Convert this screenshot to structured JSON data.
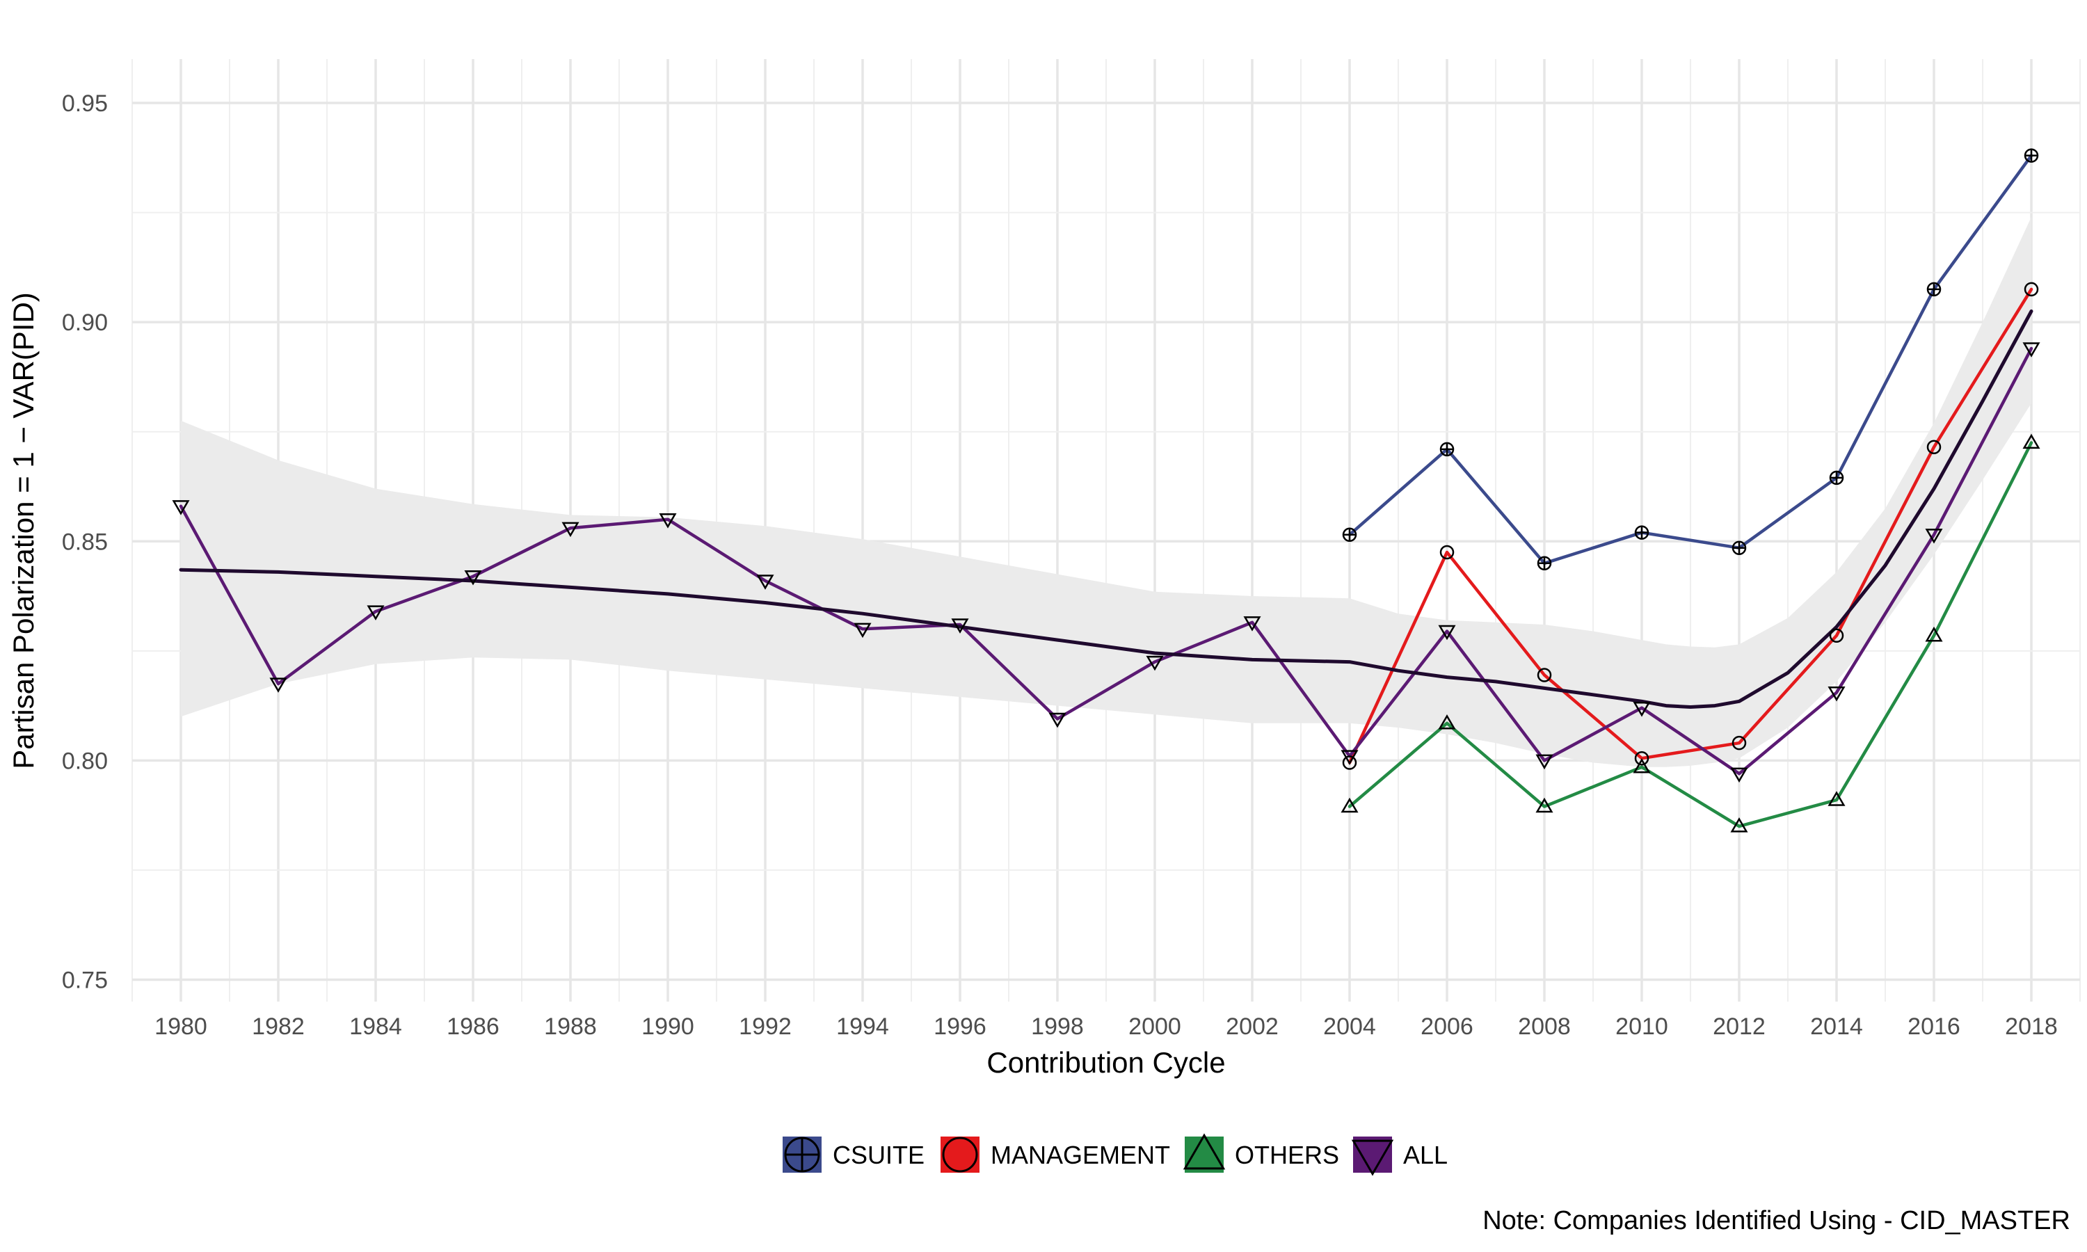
{
  "chart_data": {
    "type": "line",
    "xlabel": "Contribution Cycle",
    "ylabel": "Partisan Polarization = 1 − VAR(PID)",
    "caption": "Note: Companies Identified Using - CID_MASTER",
    "xlim": [
      1979,
      2019
    ],
    "ylim": [
      0.745,
      0.96
    ],
    "x_ticks": [
      1980,
      1982,
      1984,
      1986,
      1988,
      1990,
      1992,
      1994,
      1996,
      1998,
      2000,
      2002,
      2004,
      2006,
      2008,
      2010,
      2012,
      2014,
      2016,
      2018
    ],
    "x_tick_labels": [
      "1980",
      "1982",
      "1984",
      "1986",
      "1988",
      "1990",
      "1992",
      "1994",
      "1996",
      "1998",
      "2000",
      "2002",
      "2004",
      "2006",
      "2008",
      "2010",
      "2012",
      "2014",
      "2016",
      "2018"
    ],
    "y_ticks": [
      0.75,
      0.8,
      0.85,
      0.9,
      0.95
    ],
    "y_tick_labels": [
      "0.75",
      "0.80",
      "0.85",
      "0.90",
      "0.95"
    ],
    "grid": true,
    "legend_position": "bottom",
    "series": [
      {
        "name": "CSUITE",
        "color": "#3b4a8c",
        "marker": "circle-plus",
        "x": [
          2004,
          2006,
          2008,
          2010,
          2012,
          2014,
          2016,
          2018
        ],
        "values": [
          0.8515,
          0.871,
          0.845,
          0.852,
          0.8485,
          0.8645,
          0.9075,
          0.938
        ]
      },
      {
        "name": "MANAGEMENT",
        "color": "#e41a1c",
        "marker": "circle",
        "x": [
          2004,
          2006,
          2008,
          2010,
          2012,
          2014,
          2016,
          2018
        ],
        "values": [
          0.7995,
          0.8475,
          0.8195,
          0.8005,
          0.804,
          0.8285,
          0.8715,
          0.9075
        ]
      },
      {
        "name": "OTHERS",
        "color": "#238b45",
        "marker": "triangle-up",
        "x": [
          2004,
          2006,
          2008,
          2010,
          2012,
          2014,
          2016,
          2018
        ],
        "values": [
          0.7895,
          0.8085,
          0.7895,
          0.7985,
          0.785,
          0.791,
          0.8285,
          0.8725
        ]
      },
      {
        "name": "ALL",
        "color": "#5b1a73",
        "marker": "triangle-down",
        "x": [
          1980,
          1982,
          1984,
          1986,
          1988,
          1990,
          1992,
          1994,
          1996,
          1998,
          2000,
          2002,
          2004,
          2006,
          2008,
          2010,
          2012,
          2014,
          2016,
          2018
        ],
        "values": [
          0.858,
          0.8175,
          0.834,
          0.842,
          0.853,
          0.855,
          0.841,
          0.83,
          0.831,
          0.8095,
          0.8225,
          0.8315,
          0.801,
          0.8295,
          0.8,
          0.812,
          0.797,
          0.8155,
          0.8515,
          0.894
        ]
      }
    ],
    "smooth": {
      "color": "#1f0a2e",
      "band_color": "#ebebeb",
      "x": [
        1980,
        1982,
        1984,
        1986,
        1988,
        1990,
        1992,
        1994,
        1996,
        1998,
        2000,
        2002,
        2004,
        2005,
        2006,
        2007,
        2008,
        2009,
        2010,
        2010.5,
        2011,
        2011.5,
        2012,
        2013,
        2014,
        2015,
        2016,
        2017,
        2018
      ],
      "fit": [
        0.8435,
        0.843,
        0.842,
        0.841,
        0.8395,
        0.838,
        0.836,
        0.8335,
        0.8305,
        0.8275,
        0.8245,
        0.823,
        0.8225,
        0.8205,
        0.819,
        0.818,
        0.8165,
        0.815,
        0.8135,
        0.8125,
        0.8122,
        0.8125,
        0.8135,
        0.82,
        0.8305,
        0.8445,
        0.862,
        0.882,
        0.9025
      ],
      "lower": [
        0.81,
        0.8175,
        0.822,
        0.8235,
        0.823,
        0.8205,
        0.8185,
        0.8165,
        0.8145,
        0.8125,
        0.8105,
        0.8085,
        0.8085,
        0.8075,
        0.806,
        0.804,
        0.8015,
        0.7995,
        0.7985,
        0.7985,
        0.7988,
        0.7995,
        0.8005,
        0.8075,
        0.818,
        0.8315,
        0.847,
        0.864,
        0.8815
      ],
      "upper": [
        0.8775,
        0.8685,
        0.862,
        0.8585,
        0.856,
        0.8555,
        0.8535,
        0.8505,
        0.8465,
        0.8425,
        0.8385,
        0.8375,
        0.837,
        0.8335,
        0.832,
        0.8315,
        0.831,
        0.8295,
        0.8275,
        0.8265,
        0.826,
        0.8258,
        0.8265,
        0.8325,
        0.843,
        0.8575,
        0.877,
        0.9,
        0.924
      ]
    }
  }
}
